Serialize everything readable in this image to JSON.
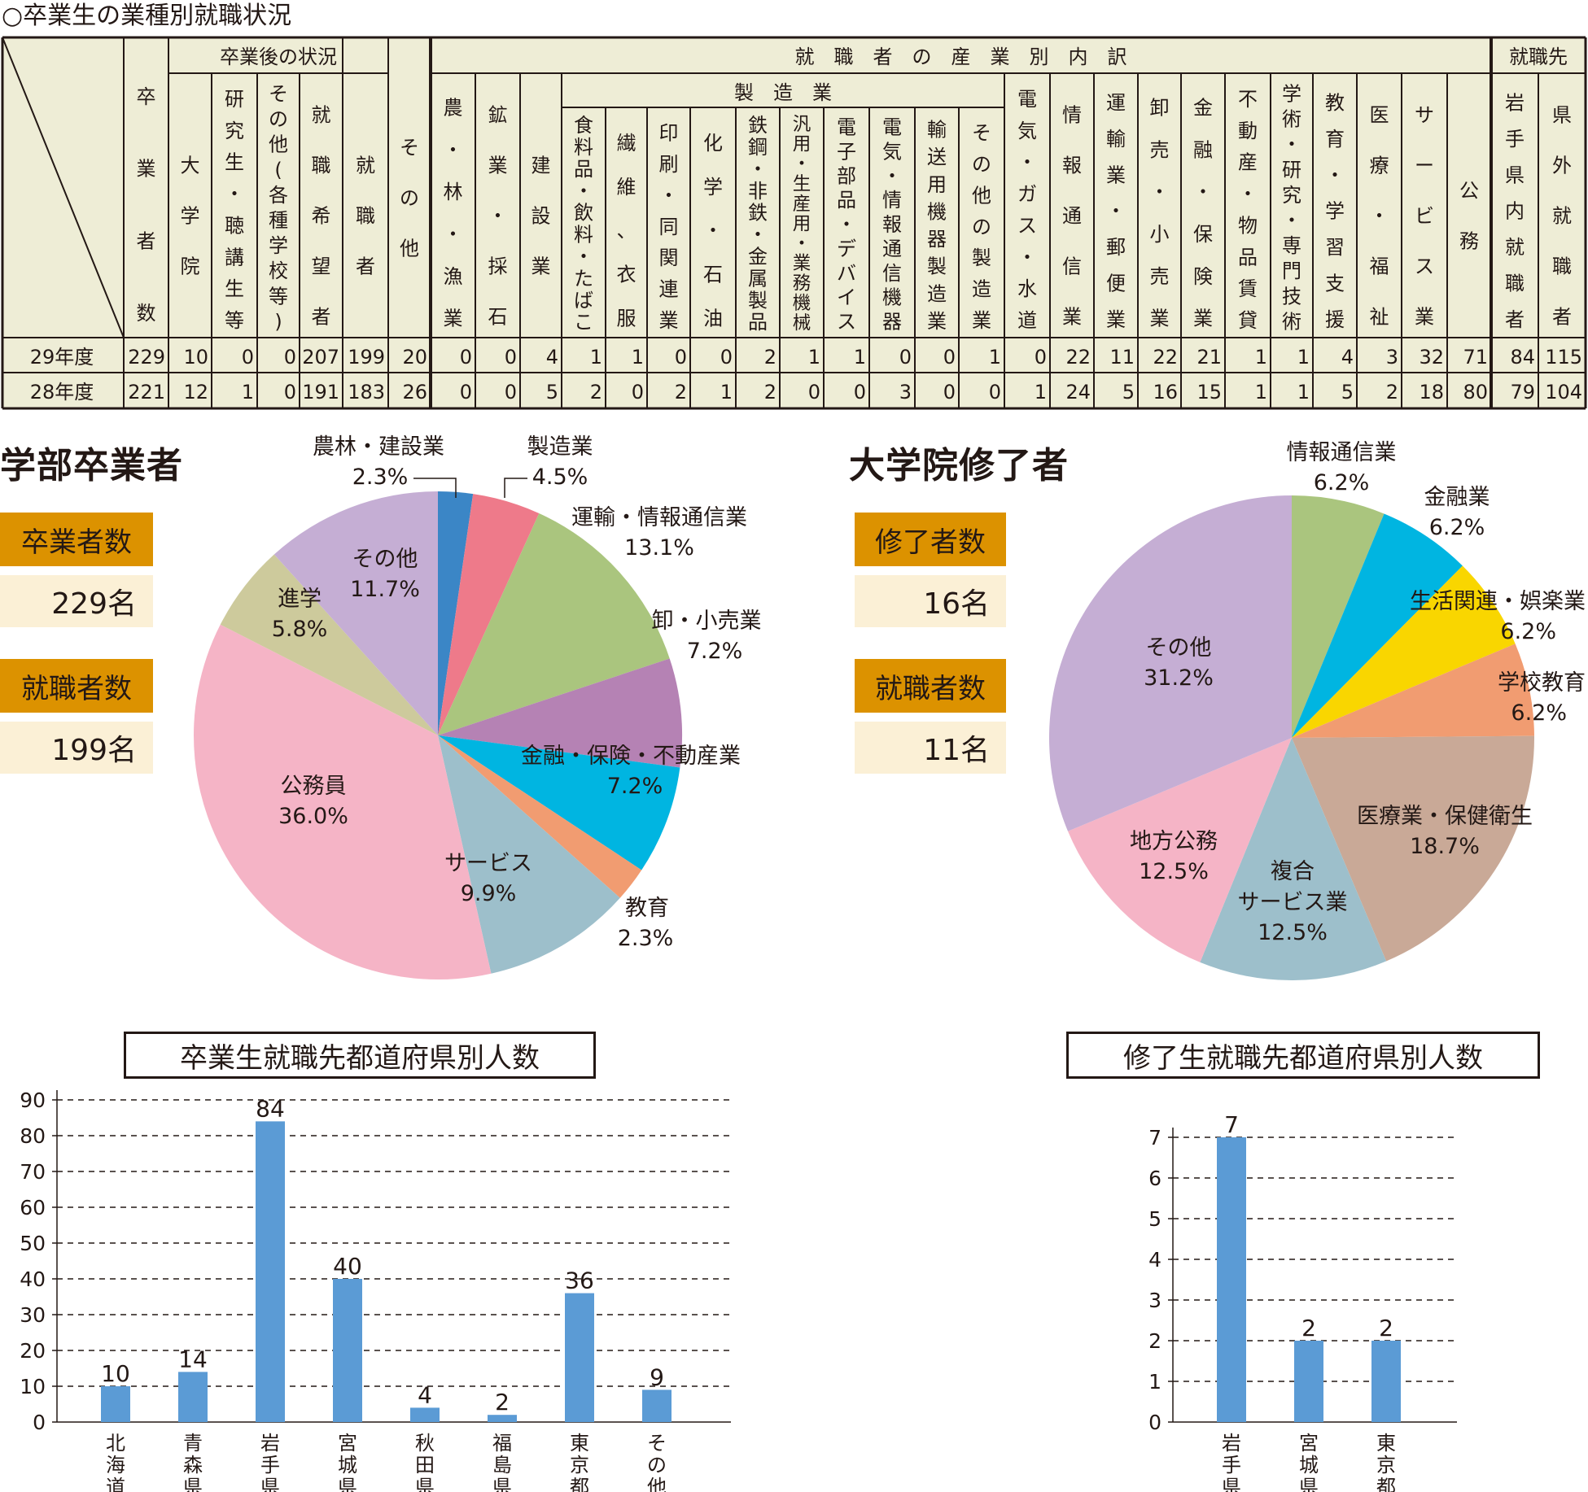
{
  "page_title": "○卒業生の業種別就職状況",
  "table": {
    "header": {
      "graduates": "卒業者数",
      "after_grad_group": "卒業後の状況",
      "after_grad_cols": [
        "大学院",
        "研究生・聴講生等",
        "その他（各種学校等）",
        "就職希望者",
        "就職者"
      ],
      "other": "その他",
      "industry_group": "就職者の産業別内訳",
      "mfg_group": "製造業",
      "ind_cols_a": [
        "農・林・漁業",
        "鉱業・採石",
        "建設業"
      ],
      "mfg_cols": [
        "食料品・飲料・たばこ",
        "繊維、衣服",
        "印刷・同関連業",
        "化学・石油",
        "鉄鋼・非鉄・金属製品",
        "汎用・生産用・業務機械",
        "電子部品・デバイス",
        "電気・情報通信機器",
        "輸送用機器製造業",
        "その他の製造業"
      ],
      "ind_cols_b": [
        "電気・ガス・水道",
        "情報通信業",
        "運輸業・郵便業",
        "卸売・小売業",
        "金融・保険業",
        "不動産・物品賃貸",
        "学術・研究・専門技術",
        "教育・学習支援",
        "医療・福祉",
        "サービス業",
        "公務"
      ],
      "dest_group": "就職先",
      "dest_cols": [
        "岩手県内就職者",
        "県外就職者"
      ]
    },
    "rows": [
      {
        "label": "29年度",
        "values": [
          "229",
          "10",
          "0",
          "0",
          "207",
          "199",
          "20",
          "0",
          "0",
          "4",
          "1",
          "1",
          "0",
          "0",
          "2",
          "1",
          "1",
          "0",
          "0",
          "1",
          "0",
          "22",
          "11",
          "22",
          "21",
          "1",
          "1",
          "4",
          "3",
          "32",
          "71",
          "84",
          "115"
        ]
      },
      {
        "label": "28年度",
        "values": [
          "221",
          "12",
          "1",
          "0",
          "191",
          "183",
          "26",
          "0",
          "0",
          "5",
          "2",
          "0",
          "2",
          "1",
          "2",
          "0",
          "0",
          "3",
          "0",
          "0",
          "1",
          "24",
          "5",
          "16",
          "15",
          "1",
          "1",
          "5",
          "2",
          "18",
          "80",
          "79",
          "104"
        ]
      }
    ]
  },
  "undergrad": {
    "heading": "学部卒業者",
    "grad_label": "卒業者数",
    "grad_value": "229名",
    "emp_label": "就職者数",
    "emp_value": "199名"
  },
  "graduate_school": {
    "heading": "大学院修了者",
    "grad_label": "修了者数",
    "grad_value": "16名",
    "emp_label": "就職者数",
    "emp_value": "11名"
  },
  "chart_data": [
    {
      "type": "pie",
      "title": "学部卒業者",
      "slices": [
        {
          "label": "農林・建設業",
          "value": 2.3,
          "display": "2.3%",
          "color": "#3b86c6"
        },
        {
          "label": "製造業",
          "value": 4.5,
          "display": "4.5%",
          "color": "#ee7a8a"
        },
        {
          "label": "運輸・情報通信業",
          "value": 13.1,
          "display": "13.1%",
          "color": "#aac57e"
        },
        {
          "label": "卸・小売業",
          "value": 7.2,
          "display": "7.2%",
          "color": "#b582b4"
        },
        {
          "label": "金融・保険・不動産業",
          "value": 7.2,
          "display": "7.2%",
          "color": "#00b5e1"
        },
        {
          "label": "教育",
          "value": 2.3,
          "display": "2.3%",
          "color": "#f19c71"
        },
        {
          "label": "サービス",
          "value": 9.9,
          "display": "9.9%",
          "color": "#9dbfcb"
        },
        {
          "label": "公務員",
          "value": 36.0,
          "display": "36.0%",
          "color": "#f5b4c6"
        },
        {
          "label": "進学",
          "value": 5.8,
          "display": "5.8%",
          "color": "#cdca9c"
        },
        {
          "label": "その他",
          "value": 11.7,
          "display": "11.7%",
          "color": "#c5aed4"
        }
      ]
    },
    {
      "type": "pie",
      "title": "大学院修了者",
      "slices": [
        {
          "label": "情報通信業",
          "value": 6.2,
          "display": "6.2%",
          "color": "#aac57e"
        },
        {
          "label": "金融業",
          "value": 6.2,
          "display": "6.2%",
          "color": "#00b5e1"
        },
        {
          "label": "生活関連・娯楽業",
          "value": 6.2,
          "display": "6.2%",
          "color": "#f9d600"
        },
        {
          "label": "学校教育",
          "value": 6.2,
          "display": "6.2%",
          "color": "#f19c71"
        },
        {
          "label": "医療業・保健衛生",
          "value": 18.7,
          "display": "18.7%",
          "color": "#c9a997"
        },
        {
          "label": "複合サービス業",
          "value": 12.5,
          "display": "12.5%",
          "color": "#9dbfcb"
        },
        {
          "label": "地方公務",
          "value": 12.5,
          "display": "12.5%",
          "color": "#f5b4c6"
        },
        {
          "label": "その他",
          "value": 31.2,
          "display": "31.2%",
          "color": "#c5aed4"
        }
      ]
    },
    {
      "type": "bar",
      "title": "卒業生就職先都道府県別人数",
      "categories": [
        "北海道",
        "青森県",
        "岩手県",
        "宮城県",
        "秋田県",
        "福島県",
        "東京都",
        "その他"
      ],
      "values": [
        10,
        14,
        84,
        40,
        4,
        2,
        36,
        9
      ],
      "ylim": [
        0,
        90
      ],
      "yticks": [
        0,
        10,
        20,
        30,
        40,
        50,
        60,
        70,
        80,
        90
      ],
      "grid": true,
      "color": "#5b9bd5"
    },
    {
      "type": "bar",
      "title": "修了生就職先都道府県別人数",
      "categories": [
        "岩手県",
        "宮城県",
        "東京都"
      ],
      "values": [
        7,
        2,
        2
      ],
      "ylim": [
        0,
        7
      ],
      "yticks": [
        0,
        1,
        2,
        3,
        4,
        5,
        6,
        7
      ],
      "grid": true,
      "color": "#5b9bd5"
    }
  ]
}
